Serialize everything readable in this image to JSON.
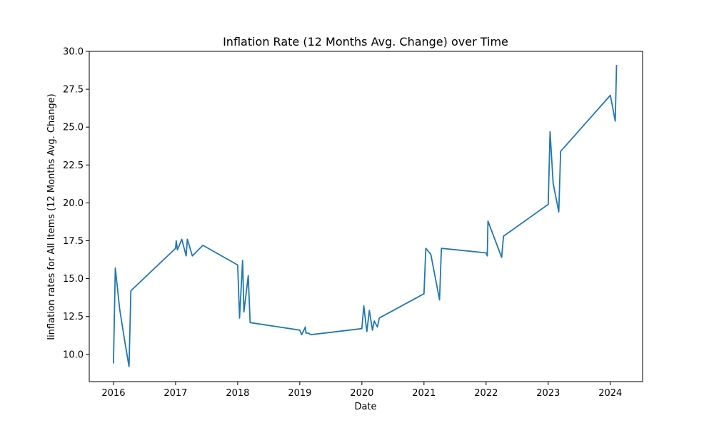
{
  "chart_data": {
    "type": "line",
    "title": "Inflation Rate (12 Months Avg. Change) over Time",
    "xlabel": "Date",
    "ylabel": "Iinflation rates for All Items (12 Months Avg. Change)",
    "xlim": [
      2015.61,
      2024.52
    ],
    "ylim": [
      8.2,
      30.0
    ],
    "xticks": [
      2016,
      2017,
      2018,
      2019,
      2020,
      2021,
      2022,
      2023,
      2024
    ],
    "xtick_labels": [
      "2016",
      "2017",
      "2018",
      "2019",
      "2020",
      "2021",
      "2022",
      "2023",
      "2024"
    ],
    "yticks": [
      10.0,
      12.5,
      15.0,
      17.5,
      20.0,
      22.5,
      25.0,
      27.5,
      30.0
    ],
    "ytick_labels": [
      "10.0",
      "12.5",
      "15.0",
      "17.5",
      "20.0",
      "22.5",
      "25.0",
      "27.5",
      "30.0"
    ],
    "grid": false,
    "series": [
      {
        "color": "#1f77b4",
        "x": [
          2016.0,
          2016.03,
          2016.1,
          2016.18,
          2016.25,
          2016.28,
          2017.0,
          2017.01,
          2017.03,
          2017.05,
          2017.1,
          2017.17,
          2017.19,
          2017.27,
          2017.44,
          2018.0,
          2018.03,
          2018.08,
          2018.1,
          2018.17,
          2018.2,
          2019.0,
          2019.03,
          2019.09,
          2019.1,
          2019.14,
          2019.18,
          2020.0,
          2020.03,
          2020.08,
          2020.12,
          2020.17,
          2020.2,
          2020.25,
          2020.28,
          2021.0,
          2021.03,
          2021.11,
          2021.25,
          2021.28,
          2022.0,
          2022.02,
          2022.03,
          2022.25,
          2022.28,
          2023.0,
          2023.03,
          2023.08,
          2023.17,
          2023.2,
          2024.0,
          2024.08,
          2024.1
        ],
        "y": [
          9.4,
          15.7,
          13.0,
          10.9,
          9.2,
          14.2,
          17.0,
          17.5,
          16.9,
          17.1,
          17.6,
          16.5,
          17.6,
          16.5,
          17.2,
          15.9,
          12.4,
          16.2,
          12.8,
          15.2,
          12.1,
          11.6,
          11.3,
          11.8,
          11.4,
          11.4,
          11.3,
          11.7,
          13.2,
          11.5,
          12.9,
          11.6,
          12.2,
          11.8,
          12.4,
          14.0,
          17.0,
          16.6,
          13.6,
          17.0,
          16.7,
          16.5,
          18.8,
          16.4,
          17.8,
          19.9,
          24.7,
          21.3,
          19.4,
          23.4,
          27.1,
          25.4,
          29.1
        ]
      }
    ]
  }
}
